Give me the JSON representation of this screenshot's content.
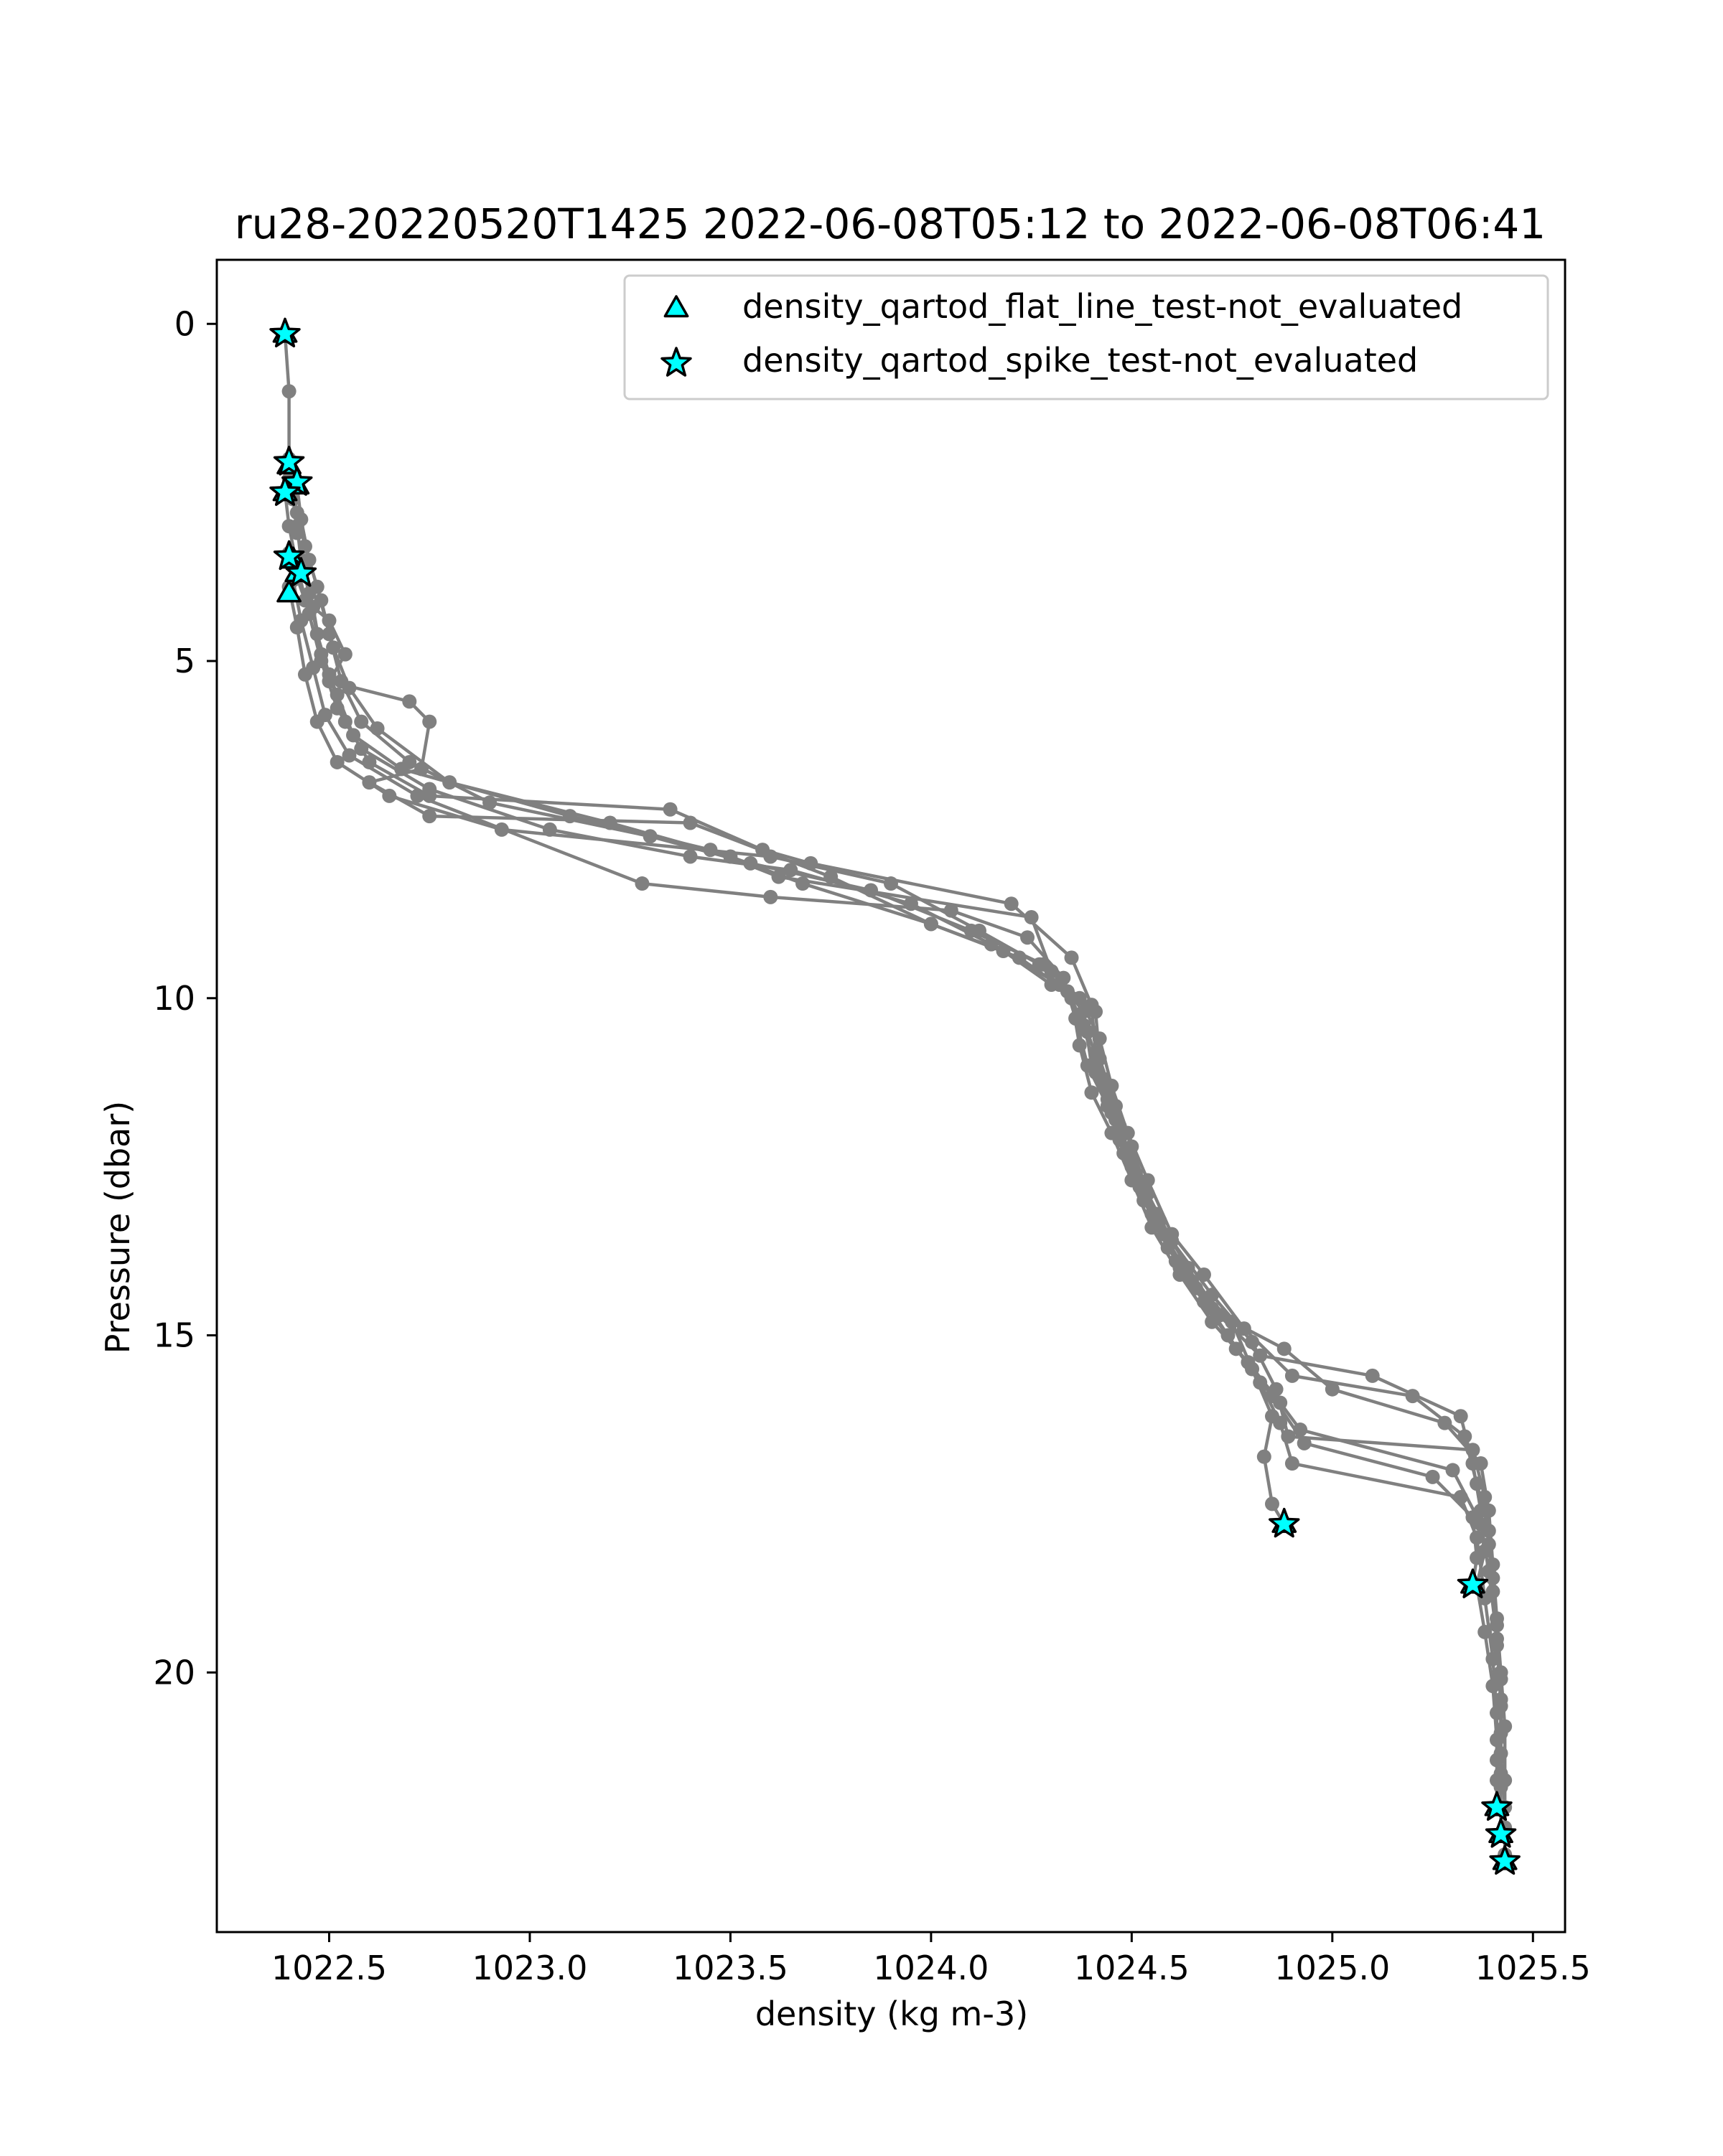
{
  "chart_data": {
    "type": "scatter",
    "title": "ru28-20220520T1425 2022-06-08T05:12 to 2022-06-08T06:41",
    "xlabel": "density (kg m-3)",
    "ylabel": "Pressure (dbar)",
    "xlim": [
      1022.22,
      1025.58
    ],
    "ylim": [
      23.85,
      -0.95
    ],
    "y_inverted": true,
    "x_ticks": [
      {
        "value": 1022.5,
        "label": "1022.5"
      },
      {
        "value": 1023.0,
        "label": "1023.0"
      },
      {
        "value": 1023.5,
        "label": "1023.5"
      },
      {
        "value": 1024.0,
        "label": "1024.0"
      },
      {
        "value": 1024.5,
        "label": "1024.5"
      },
      {
        "value": 1025.0,
        "label": "1025.0"
      },
      {
        "value": 1025.5,
        "label": "1025.5"
      }
    ],
    "y_ticks": [
      {
        "value": 0,
        "label": "0"
      },
      {
        "value": 5,
        "label": "5"
      },
      {
        "value": 10,
        "label": "10"
      },
      {
        "value": 15,
        "label": "15"
      },
      {
        "value": 20,
        "label": "20"
      }
    ],
    "grid": false,
    "legend_position": "top-right",
    "colors": {
      "profile": "#808080",
      "flag_fill": "#00ffff",
      "flag_edge": "#000000"
    },
    "legend": [
      {
        "label": "density_qartod_flat_line_test-not_evaluated",
        "marker": "triangle"
      },
      {
        "label": "density_qartod_spike_test-not_evaluated",
        "marker": "star"
      }
    ],
    "series": [
      {
        "style": "line-with-dots",
        "points": [
          [
            1022.39,
            0.15
          ],
          [
            1022.4,
            1.0
          ],
          [
            1022.4,
            2.0
          ],
          [
            1022.41,
            2.6
          ],
          [
            1022.42,
            3.0
          ],
          [
            1022.43,
            3.5
          ],
          [
            1022.45,
            4.0
          ],
          [
            1022.47,
            4.6
          ],
          [
            1022.5,
            5.2
          ],
          [
            1022.54,
            5.9
          ],
          [
            1022.6,
            6.5
          ],
          [
            1022.75,
            7.0
          ],
          [
            1023.35,
            7.2
          ],
          [
            1023.58,
            7.8
          ],
          [
            1023.7,
            8.0
          ],
          [
            1024.2,
            8.6
          ],
          [
            1024.35,
            9.4
          ],
          [
            1024.4,
            10.1
          ],
          [
            1024.41,
            10.8
          ],
          [
            1024.44,
            11.5
          ],
          [
            1024.47,
            12.1
          ],
          [
            1024.52,
            12.8
          ],
          [
            1024.58,
            13.5
          ],
          [
            1024.65,
            14.2
          ],
          [
            1024.75,
            14.8
          ],
          [
            1024.8,
            15.5
          ],
          [
            1024.85,
            16.2
          ],
          [
            1024.83,
            16.8
          ],
          [
            1024.85,
            17.5
          ],
          [
            1024.88,
            17.8
          ]
        ]
      },
      {
        "style": "line-with-dots",
        "points": [
          [
            1022.4,
            2.1
          ],
          [
            1022.41,
            2.5
          ],
          [
            1022.42,
            3.1
          ],
          [
            1022.44,
            3.6
          ],
          [
            1022.46,
            4.2
          ],
          [
            1022.48,
            4.9
          ],
          [
            1022.52,
            5.5
          ],
          [
            1022.56,
            6.1
          ],
          [
            1022.68,
            6.6
          ],
          [
            1023.1,
            7.3
          ],
          [
            1023.45,
            7.8
          ],
          [
            1023.62,
            8.2
          ],
          [
            1024.25,
            8.8
          ],
          [
            1024.3,
            9.6
          ],
          [
            1024.38,
            10.2
          ],
          [
            1024.4,
            11.0
          ],
          [
            1024.45,
            11.7
          ],
          [
            1024.5,
            12.4
          ],
          [
            1024.56,
            13.2
          ],
          [
            1024.62,
            14.0
          ],
          [
            1024.7,
            14.6
          ],
          [
            1024.82,
            15.3
          ],
          [
            1025.1,
            15.6
          ],
          [
            1025.32,
            16.2
          ],
          [
            1025.35,
            16.9
          ],
          [
            1025.37,
            17.6
          ],
          [
            1025.38,
            18.2
          ],
          [
            1025.36,
            18.7
          ],
          [
            1025.38,
            19.4
          ],
          [
            1025.4,
            20.2
          ],
          [
            1025.41,
            21.0
          ],
          [
            1025.41,
            21.6
          ],
          [
            1025.41,
            22.0
          ]
        ]
      },
      {
        "style": "line-with-dots",
        "points": [
          [
            1022.4,
            2.3
          ],
          [
            1022.42,
            2.8
          ],
          [
            1022.44,
            3.3
          ],
          [
            1022.47,
            3.9
          ],
          [
            1022.5,
            4.6
          ],
          [
            1022.53,
            5.3
          ],
          [
            1022.58,
            5.9
          ],
          [
            1022.7,
            6.5
          ],
          [
            1022.9,
            7.1
          ],
          [
            1023.3,
            7.6
          ],
          [
            1023.55,
            8.0
          ],
          [
            1023.85,
            8.4
          ],
          [
            1024.1,
            9.0
          ],
          [
            1024.28,
            9.5
          ],
          [
            1024.37,
            10.0
          ],
          [
            1024.42,
            10.6
          ],
          [
            1024.45,
            11.3
          ],
          [
            1024.49,
            12.0
          ],
          [
            1024.54,
            12.7
          ],
          [
            1024.6,
            13.5
          ],
          [
            1024.68,
            14.1
          ],
          [
            1024.78,
            14.9
          ],
          [
            1024.9,
            15.6
          ],
          [
            1025.2,
            15.9
          ],
          [
            1025.33,
            16.5
          ],
          [
            1025.36,
            17.2
          ],
          [
            1025.39,
            17.9
          ],
          [
            1025.4,
            18.6
          ],
          [
            1025.41,
            19.3
          ],
          [
            1025.42,
            20.1
          ],
          [
            1025.42,
            20.9
          ],
          [
            1025.42,
            21.7
          ],
          [
            1025.42,
            22.4
          ]
        ]
      },
      {
        "style": "line-with-dots",
        "points": [
          [
            1022.42,
            2.4
          ],
          [
            1022.43,
            2.9
          ],
          [
            1022.45,
            3.5
          ],
          [
            1022.48,
            4.1
          ],
          [
            1022.51,
            4.8
          ],
          [
            1022.55,
            5.4
          ],
          [
            1022.62,
            6.0
          ],
          [
            1022.8,
            6.8
          ],
          [
            1023.2,
            7.4
          ],
          [
            1023.5,
            7.9
          ],
          [
            1023.68,
            8.3
          ],
          [
            1024.0,
            8.9
          ],
          [
            1024.22,
            9.4
          ],
          [
            1024.34,
            9.9
          ],
          [
            1024.39,
            10.5
          ],
          [
            1024.43,
            11.2
          ],
          [
            1024.47,
            11.9
          ],
          [
            1024.51,
            12.6
          ],
          [
            1024.57,
            13.3
          ],
          [
            1024.64,
            14.0
          ],
          [
            1024.72,
            14.7
          ],
          [
            1024.88,
            15.2
          ],
          [
            1025.0,
            15.8
          ],
          [
            1025.28,
            16.3
          ],
          [
            1025.37,
            16.9
          ],
          [
            1025.39,
            17.6
          ],
          [
            1025.4,
            18.4
          ],
          [
            1025.41,
            19.2
          ],
          [
            1025.42,
            20.0
          ],
          [
            1025.43,
            20.8
          ],
          [
            1025.43,
            21.6
          ],
          [
            1025.43,
            22.3
          ],
          [
            1025.43,
            22.7
          ]
        ]
      },
      {
        "style": "line-with-dots",
        "points": [
          [
            1022.39,
            2.5
          ],
          [
            1022.4,
            3.0
          ],
          [
            1022.42,
            3.6
          ],
          [
            1022.45,
            4.3
          ],
          [
            1022.48,
            5.0
          ],
          [
            1022.52,
            5.7
          ],
          [
            1022.58,
            6.3
          ],
          [
            1022.75,
            6.9
          ],
          [
            1023.05,
            7.5
          ],
          [
            1023.4,
            7.9
          ],
          [
            1023.65,
            8.1
          ],
          [
            1023.95,
            8.6
          ],
          [
            1024.15,
            9.2
          ],
          [
            1024.32,
            9.8
          ],
          [
            1024.38,
            10.4
          ],
          [
            1024.41,
            11.1
          ],
          [
            1024.46,
            11.8
          ],
          [
            1024.5,
            12.5
          ],
          [
            1024.55,
            13.2
          ],
          [
            1024.61,
            13.9
          ],
          [
            1024.68,
            14.5
          ],
          [
            1024.76,
            15.2
          ],
          [
            1024.85,
            15.9
          ],
          [
            1024.93,
            16.6
          ],
          [
            1025.25,
            17.1
          ],
          [
            1025.35,
            17.7
          ],
          [
            1025.36,
            18.3
          ],
          [
            1025.35,
            18.7
          ]
        ]
      },
      {
        "style": "line-with-dots",
        "points": [
          [
            1022.4,
            3.4
          ],
          [
            1022.41,
            3.8
          ],
          [
            1022.43,
            4.4
          ],
          [
            1022.46,
            5.1
          ],
          [
            1022.49,
            5.8
          ],
          [
            1022.55,
            6.4
          ],
          [
            1022.72,
            7.0
          ],
          [
            1023.28,
            8.3
          ],
          [
            1023.6,
            8.5
          ],
          [
            1024.05,
            8.7
          ],
          [
            1024.24,
            9.1
          ],
          [
            1024.33,
            9.7
          ],
          [
            1024.36,
            10.3
          ],
          [
            1024.39,
            11.0
          ],
          [
            1024.44,
            11.6
          ],
          [
            1024.48,
            12.3
          ],
          [
            1024.53,
            13.0
          ],
          [
            1024.59,
            13.7
          ],
          [
            1024.66,
            14.3
          ],
          [
            1024.74,
            15.0
          ],
          [
            1024.82,
            15.7
          ],
          [
            1024.87,
            16.3
          ],
          [
            1024.9,
            16.9
          ],
          [
            1025.32,
            17.4
          ],
          [
            1025.36,
            18.0
          ],
          [
            1025.38,
            18.9
          ],
          [
            1025.4,
            19.8
          ],
          [
            1025.41,
            20.6
          ],
          [
            1025.41,
            21.3
          ]
        ]
      },
      {
        "style": "line-with-dots",
        "points": [
          [
            1022.4,
            3.9
          ],
          [
            1022.42,
            4.5
          ],
          [
            1022.44,
            5.2
          ],
          [
            1022.47,
            5.9
          ],
          [
            1022.52,
            6.5
          ],
          [
            1022.65,
            7.0
          ],
          [
            1022.93,
            7.5
          ],
          [
            1023.6,
            7.9
          ],
          [
            1023.9,
            8.3
          ],
          [
            1024.12,
            9.0
          ],
          [
            1024.27,
            9.5
          ],
          [
            1024.35,
            10.0
          ],
          [
            1024.37,
            10.7
          ],
          [
            1024.4,
            11.4
          ],
          [
            1024.45,
            12.0
          ],
          [
            1024.5,
            12.7
          ],
          [
            1024.55,
            13.4
          ],
          [
            1024.62,
            14.1
          ],
          [
            1024.7,
            14.8
          ],
          [
            1024.79,
            15.4
          ],
          [
            1024.87,
            16.0
          ],
          [
            1024.92,
            16.4
          ],
          [
            1025.3,
            17.0
          ],
          [
            1025.37,
            17.8
          ],
          [
            1025.39,
            18.5
          ],
          [
            1025.41,
            19.5
          ],
          [
            1025.42,
            20.5
          ],
          [
            1025.42,
            21.5
          ]
        ]
      },
      {
        "style": "line-with-dots",
        "points": [
          [
            1022.41,
            3.6
          ],
          [
            1022.44,
            4.1
          ],
          [
            1022.5,
            4.4
          ],
          [
            1022.54,
            4.9
          ],
          [
            1022.5,
            5.3
          ],
          [
            1022.7,
            5.6
          ],
          [
            1022.75,
            5.9
          ],
          [
            1022.73,
            6.6
          ],
          [
            1022.6,
            6.8
          ],
          [
            1022.75,
            7.3
          ],
          [
            1023.4,
            7.4
          ],
          [
            1023.75,
            8.2
          ],
          [
            1024.0,
            8.9
          ],
          [
            1024.18,
            9.3
          ],
          [
            1024.3,
            9.8
          ],
          [
            1024.41,
            10.2
          ],
          [
            1024.42,
            10.9
          ],
          [
            1024.46,
            11.6
          ],
          [
            1024.5,
            12.2
          ],
          [
            1024.54,
            12.9
          ],
          [
            1024.6,
            13.6
          ],
          [
            1024.7,
            14.4
          ],
          [
            1024.8,
            15.1
          ],
          [
            1024.86,
            15.8
          ],
          [
            1024.89,
            16.5
          ],
          [
            1025.35,
            16.7
          ],
          [
            1025.38,
            17.4
          ],
          [
            1025.39,
            18.1
          ],
          [
            1025.4,
            18.8
          ],
          [
            1025.41,
            19.6
          ],
          [
            1025.42,
            20.4
          ],
          [
            1025.42,
            21.2
          ],
          [
            1025.43,
            22.0
          ],
          [
            1025.43,
            22.8
          ]
        ]
      }
    ],
    "flagged": {
      "flat_line_test": [
        [
          1022.39,
          0.15
        ],
        [
          1022.4,
          2.1
        ],
        [
          1022.42,
          2.4
        ],
        [
          1022.39,
          2.5
        ],
        [
          1022.41,
          3.5
        ],
        [
          1022.42,
          3.7
        ],
        [
          1022.4,
          4.0
        ],
        [
          1024.88,
          17.8
        ],
        [
          1025.35,
          18.7
        ],
        [
          1025.41,
          22.0
        ],
        [
          1025.42,
          22.4
        ],
        [
          1025.43,
          22.8
        ]
      ],
      "spike_test": [
        [
          1022.39,
          0.15
        ],
        [
          1022.4,
          2.05
        ],
        [
          1022.42,
          2.35
        ],
        [
          1022.39,
          2.5
        ],
        [
          1022.4,
          3.45
        ],
        [
          1022.43,
          3.7
        ],
        [
          1024.88,
          17.8
        ],
        [
          1025.35,
          18.7
        ],
        [
          1025.41,
          22.0
        ],
        [
          1025.42,
          22.4
        ],
        [
          1025.43,
          22.8
        ]
      ]
    }
  }
}
